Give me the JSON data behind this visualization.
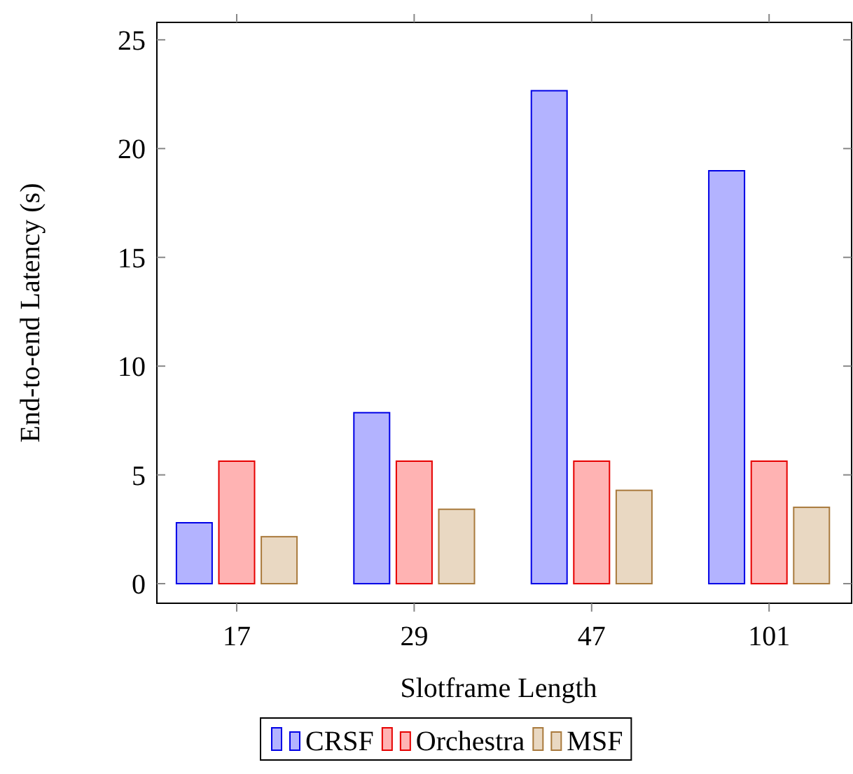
{
  "chart_data": {
    "type": "bar",
    "xlabel": "Slotframe Length",
    "ylabel": "End-to-end Latency (s)",
    "categories": [
      "17",
      "29",
      "47",
      "101"
    ],
    "series": [
      {
        "name": "CRSF",
        "color": "#b3b3ff",
        "values": [
          2.8,
          7.86,
          22.66,
          18.98
        ]
      },
      {
        "name": "Orchestra",
        "color": "#ffb3b3",
        "values": [
          5.63,
          5.63,
          5.63,
          5.63
        ]
      },
      {
        "name": "MSF",
        "color": "#e9d8c2",
        "values": [
          2.16,
          3.42,
          4.29,
          3.51
        ]
      }
    ],
    "ylim": [
      -0.9,
      25.8
    ],
    "yticks": [
      0,
      5,
      10,
      15,
      20,
      25
    ],
    "grid": false,
    "legend": "bottom"
  }
}
